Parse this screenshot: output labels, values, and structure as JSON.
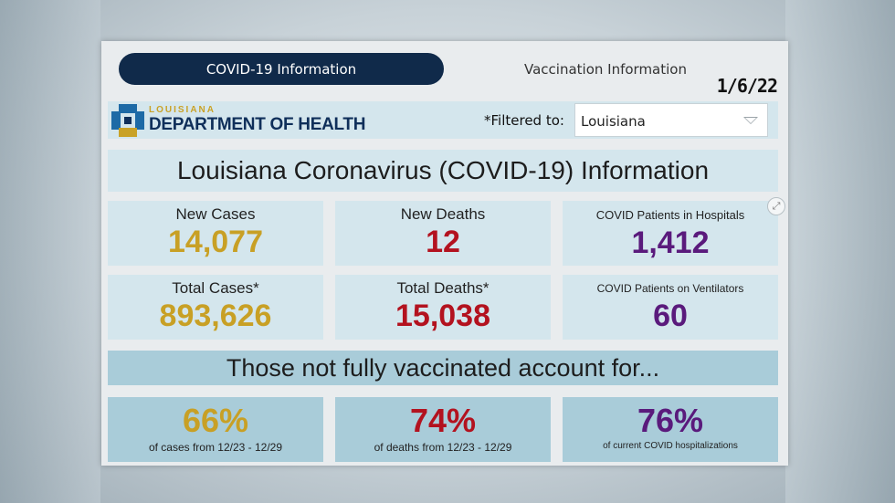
{
  "tabs": [
    {
      "label": "COVID-19 Information",
      "active": true
    },
    {
      "label": "Vaccination Information",
      "active": false
    }
  ],
  "date": "1/6/22",
  "header": {
    "logo_small": "LOUISIANA",
    "logo_big": "DEPARTMENT OF HEALTH",
    "filter_label": "*Filtered to:",
    "filter_value": "Louisiana"
  },
  "title": "Louisiana Coronavirus (COVID-19) Information",
  "stats": [
    {
      "label": "New Cases",
      "value": "14,077",
      "color": "#c8a025"
    },
    {
      "label": "New Deaths",
      "value": "12",
      "color": "#b3121f"
    },
    {
      "label": "COVID Patients in Hospitals",
      "value": "1,412",
      "color": "#5a1a7c"
    },
    {
      "label": "Total Cases*",
      "value": "893,626",
      "color": "#c8a025"
    },
    {
      "label": "Total Deaths*",
      "value": "15,038",
      "color": "#b3121f"
    },
    {
      "label": "COVID Patients on Ventilators",
      "value": "60",
      "color": "#5a1a7c"
    }
  ],
  "subtitle": "Those not fully vaccinated account for...",
  "percentages": [
    {
      "value": "66%",
      "caption": "of cases from 12/23 - 12/29",
      "color": "#c8a025"
    },
    {
      "value": "74%",
      "caption": "of deaths from 12/23 - 12/29",
      "color": "#b3121f"
    },
    {
      "value": "76%",
      "caption": "of current COVID hospitalizations",
      "color": "#5a1a7c"
    }
  ],
  "icons": {
    "expand": "expand-icon",
    "dropdown": "chevron-down-icon",
    "logo": "ldh-logo-icon"
  }
}
